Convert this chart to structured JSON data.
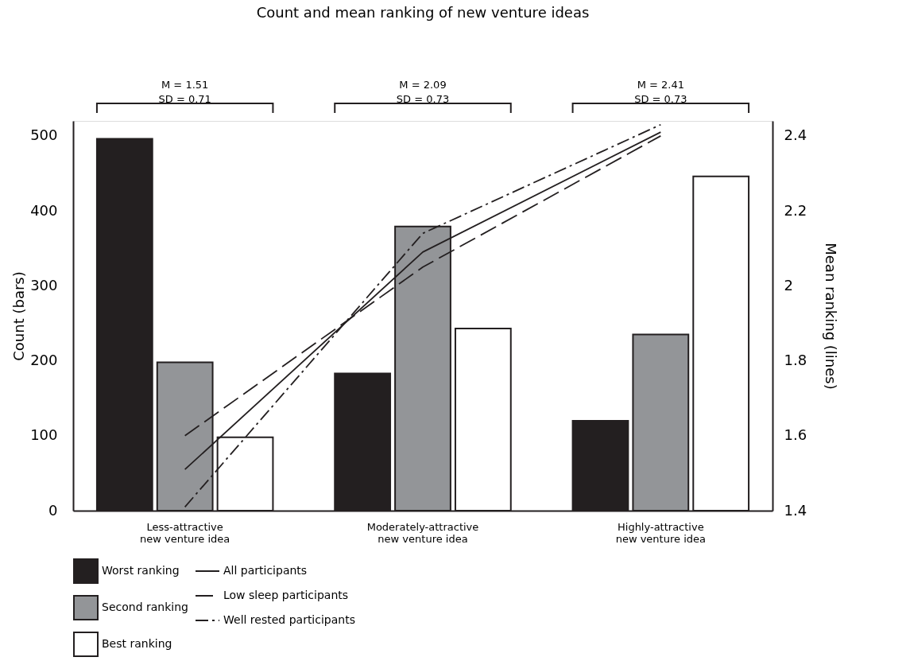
{
  "chart_data": {
    "type": "bar",
    "title": "Count and mean ranking of new venture ideas",
    "categories": [
      "Less-attractive\nnew venture idea",
      "Moderately-attractive\nnew venture idea",
      "Highly-attractive\nnew venture idea"
    ],
    "ylabel": "Count (bars)",
    "y2label": "Mean ranking (lines)",
    "ylim": [
      0,
      520
    ],
    "yticks": [
      0,
      100,
      200,
      300,
      400,
      500
    ],
    "y2lim": [
      1.4,
      2.44
    ],
    "y2ticks": [
      1.4,
      1.6,
      1.8,
      2,
      2.2,
      2.4
    ],
    "series": [
      {
        "name": "Worst ranking",
        "color": "#231f20",
        "values": [
          496,
          183,
          120
        ]
      },
      {
        "name": "Second ranking",
        "color": "#939598",
        "values": [
          198,
          379,
          235
        ]
      },
      {
        "name": "Best ranking",
        "color": "#ffffff",
        "values": [
          98,
          243,
          446
        ]
      },
      {
        "name": "All participants",
        "type": "line",
        "axis": "y2",
        "color": "#231f20",
        "line_style": "solid",
        "values": [
          1.51,
          2.09,
          2.41
        ]
      },
      {
        "name": "Low sleep participants",
        "type": "line",
        "axis": "y2",
        "color": "#231f20",
        "line_style": "dashed",
        "values": [
          1.6,
          2.05,
          2.4
        ]
      },
      {
        "name": "Well rested participants",
        "type": "line",
        "axis": "y2",
        "color": "#231f20",
        "line_style": "dashdot",
        "values": [
          1.41,
          2.14,
          2.43
        ]
      }
    ],
    "annotations": [
      "M = 1.51\nSD = 0.71",
      "M = 2.09\nSD = 0.73",
      "M = 2.41\nSD = 0.73"
    ],
    "legend": "bottom",
    "grid": false,
    "marker": "none"
  }
}
